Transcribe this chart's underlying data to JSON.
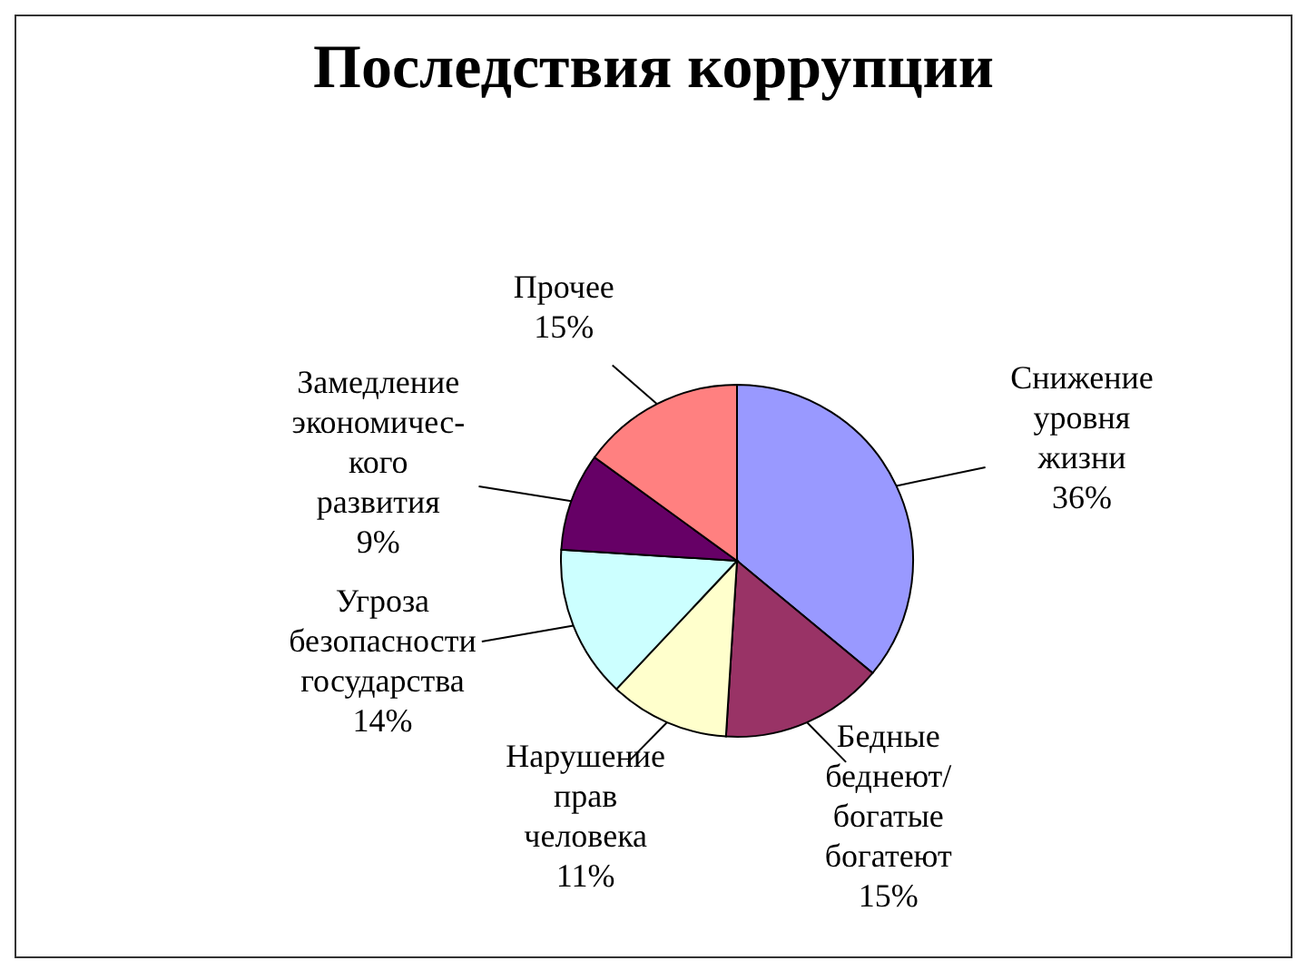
{
  "chart_data": {
    "type": "pie",
    "title": "Последствия коррупции",
    "categories": [
      "Снижение\nуровня\nжизни",
      "Бедные\nбеднеют/\nбогатые\nбогатеют",
      "Нарушение\nправ\nчеловека",
      "Угроза\nбезопасности\nгосударства",
      "Замедление\nэкономичес-\nкого\nразвития",
      "Прочее"
    ],
    "values": [
      36,
      15,
      11,
      14,
      9,
      15
    ],
    "value_labels": [
      "36%",
      "15%",
      "11%",
      "14%",
      "9%",
      "15%"
    ],
    "colors": [
      "#9999ff",
      "#993366",
      "#ffffcc",
      "#ccffff",
      "#660066",
      "#ff8080"
    ],
    "legend": false
  }
}
